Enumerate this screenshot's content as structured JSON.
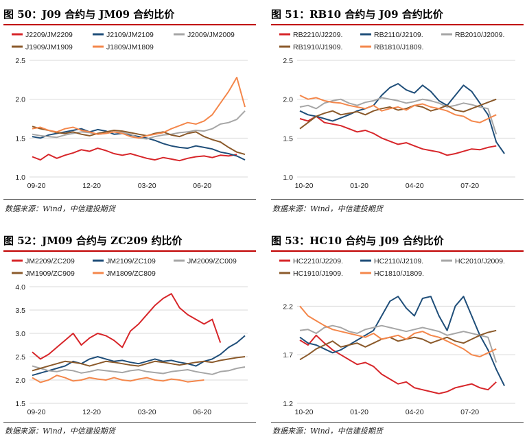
{
  "chart_data": [
    {
      "type": "line",
      "figure_label": "图 50：J09 合约与 JM09 合约比价",
      "source": "数据来源：Wind，中信建投期货",
      "xlabel": "",
      "ylabel": "",
      "x_ticks": [
        "09-20",
        "12-20",
        "03-20",
        "06-20"
      ],
      "ylim": [
        1.0,
        2.5
      ],
      "y_ticks": [
        "1.0",
        "1.5",
        "2.0",
        "2.5"
      ],
      "legend_position": "top",
      "grid": "horizontal",
      "series": [
        {
          "name": "J2209/JM2209",
          "color": "#d7262a",
          "values": [
            1.26,
            1.22,
            1.29,
            1.24,
            1.28,
            1.31,
            1.35,
            1.33,
            1.37,
            1.34,
            1.3,
            1.28,
            1.3,
            1.27,
            1.24,
            1.22,
            1.25,
            1.23,
            1.21,
            1.24,
            1.26,
            1.27,
            1.25,
            1.28,
            1.27,
            1.29
          ]
        },
        {
          "name": "J2109/JM2109",
          "color": "#1f4e79",
          "values": [
            1.52,
            1.5,
            1.54,
            1.56,
            1.58,
            1.6,
            1.62,
            1.58,
            1.61,
            1.59,
            1.55,
            1.56,
            1.54,
            1.52,
            1.5,
            1.47,
            1.43,
            1.4,
            1.38,
            1.37,
            1.4,
            1.38,
            1.36,
            1.32,
            1.3,
            1.27,
            1.22
          ]
        },
        {
          "name": "J2009/JM2009",
          "color": "#a6a6a6",
          "values": [
            1.55,
            1.53,
            1.52,
            1.51,
            1.54,
            1.56,
            1.58,
            1.57,
            1.55,
            1.56,
            1.58,
            1.57,
            1.55,
            1.5,
            1.49,
            1.52,
            1.54,
            1.55,
            1.57,
            1.58,
            1.6,
            1.59,
            1.62,
            1.68,
            1.7,
            1.74,
            1.85
          ]
        },
        {
          "name": "J1909/JM1909",
          "color": "#8b5a2b",
          "values": [
            1.65,
            1.62,
            1.6,
            1.57,
            1.56,
            1.58,
            1.55,
            1.53,
            1.56,
            1.58,
            1.6,
            1.59,
            1.57,
            1.55,
            1.53,
            1.56,
            1.58,
            1.54,
            1.52,
            1.56,
            1.58,
            1.52,
            1.48,
            1.45,
            1.38,
            1.32,
            1.29
          ]
        },
        {
          "name": "J1809/JM1809",
          "color": "#f4874b",
          "values": [
            1.62,
            1.64,
            1.6,
            1.58,
            1.62,
            1.64,
            1.6,
            1.58,
            1.55,
            1.56,
            1.58,
            1.56,
            1.52,
            1.5,
            1.53,
            1.55,
            1.57,
            1.62,
            1.66,
            1.7,
            1.68,
            1.72,
            1.8,
            1.95,
            2.1,
            2.28,
            1.9
          ]
        }
      ]
    },
    {
      "type": "line",
      "figure_label": "图 51：RB10 合约与 J09 合约比价",
      "source": "数据来源：Wind，中信建投期货",
      "xlabel": "",
      "ylabel": "",
      "x_ticks": [
        "10-20",
        "01-20",
        "04-20",
        "07-20"
      ],
      "ylim": [
        1.0,
        2.5
      ],
      "y_ticks": [
        "1.0",
        "1.5",
        "2.0",
        "2.5"
      ],
      "legend_position": "top",
      "grid": "horizontal",
      "series": [
        {
          "name": "RB2210/J2209.",
          "color": "#d7262a",
          "values": [
            1.75,
            1.72,
            1.78,
            1.7,
            1.68,
            1.66,
            1.62,
            1.58,
            1.6,
            1.56,
            1.5,
            1.46,
            1.42,
            1.44,
            1.4,
            1.36,
            1.34,
            1.32,
            1.28,
            1.3,
            1.33,
            1.36,
            1.35,
            1.38,
            1.4
          ]
        },
        {
          "name": "RB2110/J2109.",
          "color": "#1f4e79",
          "values": [
            1.85,
            1.8,
            1.78,
            1.75,
            1.72,
            1.76,
            1.8,
            1.85,
            1.88,
            1.92,
            2.05,
            2.15,
            2.2,
            2.12,
            2.08,
            2.18,
            2.1,
            1.98,
            1.92,
            2.05,
            2.18,
            2.1,
            1.95,
            1.8,
            1.45,
            1.3
          ]
        },
        {
          "name": "RB2010/J2009.",
          "color": "#a6a6a6",
          "values": [
            1.9,
            1.92,
            1.88,
            1.95,
            1.98,
            2.0,
            1.95,
            1.92,
            1.96,
            1.98,
            2.02,
            2.0,
            1.98,
            1.95,
            1.97,
            2.0,
            1.98,
            1.95,
            1.9,
            1.92,
            1.95,
            1.93,
            1.9,
            1.88,
            1.55
          ]
        },
        {
          "name": "RB1910/J1909.",
          "color": "#8b5a2b",
          "values": [
            1.62,
            1.7,
            1.78,
            1.82,
            1.85,
            1.8,
            1.82,
            1.84,
            1.8,
            1.85,
            1.88,
            1.9,
            1.86,
            1.88,
            1.92,
            1.9,
            1.85,
            1.88,
            1.92,
            1.86,
            1.84,
            1.88,
            1.92,
            1.96,
            2.0
          ]
        },
        {
          "name": "RB1810/J1809.",
          "color": "#f4874b",
          "values": [
            2.05,
            2.0,
            2.02,
            1.98,
            1.96,
            1.95,
            1.92,
            1.9,
            1.88,
            1.92,
            1.85,
            1.88,
            1.9,
            1.86,
            1.92,
            1.94,
            1.9,
            1.88,
            1.85,
            1.8,
            1.78,
            1.72,
            1.7,
            1.75,
            1.8
          ]
        }
      ]
    },
    {
      "type": "line",
      "figure_label": "图 52：JM09 合约与 ZC209 约比价",
      "source": "数据来源：Wind，中信建投期货",
      "xlabel": "",
      "ylabel": "",
      "x_ticks": [
        "09-20",
        "12-20",
        "03-20",
        "06-20"
      ],
      "ylim": [
        1.5,
        4.0
      ],
      "y_ticks": [
        "1.5",
        "2.0",
        "2.5",
        "3.0",
        "3.5",
        "4.0"
      ],
      "legend_position": "top",
      "grid": "horizontal",
      "series": [
        {
          "name": "JM2209/ZC209",
          "color": "#d7262a",
          "values": [
            2.6,
            2.45,
            2.55,
            2.7,
            2.85,
            3.0,
            2.75,
            2.9,
            3.0,
            2.95,
            2.85,
            2.7,
            3.05,
            3.2,
            3.4,
            3.6,
            3.75,
            3.85,
            3.55,
            3.4,
            3.3,
            3.2,
            3.3,
            2.8
          ]
        },
        {
          "name": "JM2109/ZC109",
          "color": "#1f4e79",
          "values": [
            2.1,
            2.15,
            2.2,
            2.25,
            2.3,
            2.4,
            2.35,
            2.45,
            2.5,
            2.45,
            2.4,
            2.42,
            2.38,
            2.35,
            2.4,
            2.45,
            2.4,
            2.42,
            2.38,
            2.35,
            2.3,
            2.4,
            2.45,
            2.55,
            2.7,
            2.8,
            2.95
          ]
        },
        {
          "name": "JM2009/ZC009",
          "color": "#a6a6a6",
          "values": [
            2.3,
            2.25,
            2.2,
            2.18,
            2.22,
            2.2,
            2.15,
            2.18,
            2.22,
            2.2,
            2.18,
            2.16,
            2.2,
            2.22,
            2.18,
            2.16,
            2.14,
            2.18,
            2.2,
            2.22,
            2.18,
            2.15,
            2.12,
            2.18,
            2.2,
            2.25,
            2.28
          ]
        },
        {
          "name": "JM1909/ZC909",
          "color": "#8b5a2b",
          "values": [
            2.2,
            2.25,
            2.3,
            2.35,
            2.4,
            2.38,
            2.35,
            2.3,
            2.35,
            2.4,
            2.38,
            2.35,
            2.32,
            2.3,
            2.35,
            2.4,
            2.38,
            2.35,
            2.32,
            2.35,
            2.38,
            2.4,
            2.38,
            2.42,
            2.45,
            2.48,
            2.5
          ]
        },
        {
          "name": "JM1809/ZC809",
          "color": "#f4874b",
          "values": [
            2.05,
            1.95,
            2.0,
            2.1,
            2.05,
            1.98,
            2.0,
            2.05,
            2.02,
            2.0,
            2.05,
            2.0,
            1.98,
            2.02,
            2.05,
            2.0,
            1.98,
            2.02,
            2.0,
            1.96,
            1.98,
            2.0
          ]
        }
      ]
    },
    {
      "type": "line",
      "figure_label": "图 53：HC10 合约与 J09 合约比价",
      "source": "数据来源：Wind，中信建投期货",
      "xlabel": "",
      "ylabel": "",
      "x_ticks": [
        "10-20",
        "01-20",
        "04-20",
        "07-20"
      ],
      "ylim": [
        1.2,
        2.4
      ],
      "y_ticks": [
        "1.2",
        "1.7",
        "2.2"
      ],
      "legend_position": "top",
      "grid": "horizontal",
      "series": [
        {
          "name": "HC2210/J2209.",
          "color": "#d7262a",
          "values": [
            1.85,
            1.8,
            1.9,
            1.82,
            1.75,
            1.7,
            1.65,
            1.6,
            1.62,
            1.58,
            1.5,
            1.45,
            1.4,
            1.42,
            1.36,
            1.34,
            1.32,
            1.3,
            1.32,
            1.36,
            1.38,
            1.4,
            1.36,
            1.34,
            1.42
          ]
        },
        {
          "name": "HC2110/J2109.",
          "color": "#1f4e79",
          "values": [
            1.88,
            1.82,
            1.8,
            1.76,
            1.72,
            1.75,
            1.8,
            1.85,
            1.9,
            1.95,
            2.1,
            2.25,
            2.3,
            2.18,
            2.1,
            2.28,
            2.3,
            2.1,
            1.95,
            2.2,
            2.3,
            2.1,
            1.9,
            1.75,
            1.55,
            1.38
          ]
        },
        {
          "name": "HC2010/J2009.",
          "color": "#a6a6a6",
          "values": [
            1.95,
            1.96,
            1.92,
            1.98,
            2.0,
            1.98,
            1.94,
            1.92,
            1.96,
            1.98,
            2.0,
            1.98,
            1.96,
            1.94,
            1.96,
            1.98,
            1.96,
            1.94,
            1.9,
            1.92,
            1.94,
            1.92,
            1.9,
            1.88,
            1.62
          ]
        },
        {
          "name": "HC1910/J1909.",
          "color": "#8b5a2b",
          "values": [
            1.65,
            1.7,
            1.76,
            1.8,
            1.84,
            1.78,
            1.8,
            1.82,
            1.78,
            1.82,
            1.86,
            1.88,
            1.84,
            1.86,
            1.88,
            1.86,
            1.82,
            1.85,
            1.88,
            1.84,
            1.82,
            1.86,
            1.9,
            1.93,
            1.95
          ]
        },
        {
          "name": "HC1810/J1809.",
          "color": "#f4874b",
          "values": [
            2.2,
            2.1,
            2.05,
            2.0,
            1.96,
            1.94,
            1.92,
            1.9,
            1.88,
            1.92,
            1.86,
            1.88,
            1.9,
            1.86,
            1.92,
            1.94,
            1.9,
            1.88,
            1.84,
            1.8,
            1.76,
            1.7,
            1.68,
            1.72,
            1.76
          ]
        }
      ]
    }
  ]
}
